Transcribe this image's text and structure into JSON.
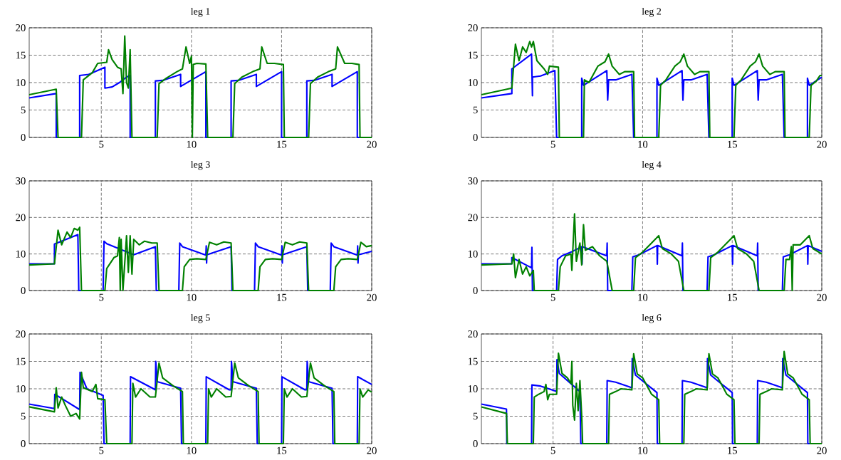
{
  "chart_data": [
    {
      "type": "line",
      "title": "leg 1",
      "xlim": [
        1,
        20
      ],
      "xticks": [
        5,
        10,
        15,
        20
      ],
      "ylim": [
        0,
        20
      ],
      "yticks": [
        0,
        5,
        10,
        15,
        20
      ],
      "grid": true,
      "series": [
        {
          "color": "#0000ff",
          "x": [
            1,
            2.5,
            2.5,
            3.8,
            3.8,
            4.3,
            5.2,
            5.2,
            5.6,
            6,
            6.4,
            6.6,
            6.6,
            8,
            8,
            8.4,
            9.4,
            9.4,
            10.8,
            10.8,
            12.2,
            12.2,
            12.6,
            13.6,
            13.6,
            15,
            15,
            16.4,
            16.4,
            16.8,
            17.8,
            17.8,
            19.2,
            19.2,
            20
          ],
          "values": [
            7.2,
            8,
            0,
            0,
            11.3,
            11.5,
            12.8,
            9,
            9.2,
            10,
            11,
            11.3,
            0,
            0,
            10.3,
            10.4,
            11.5,
            9.3,
            12,
            0,
            0,
            10.3,
            10.4,
            11.5,
            9.3,
            12,
            0,
            0,
            10.3,
            10.4,
            11.5,
            9.3,
            12,
            0,
            0
          ]
        },
        {
          "color": "#008000",
          "x": [
            1,
            2.5,
            2.6,
            3.9,
            4,
            4.5,
            4.8,
            5.3,
            5.4,
            5.6,
            5.9,
            6.1,
            6.2,
            6.3,
            6.4,
            6.5,
            6.6,
            6.7,
            8.1,
            8.2,
            8.6,
            9.2,
            9.5,
            9.7,
            9.9,
            10,
            10.05,
            10.1,
            10.3,
            10.8,
            10.9,
            12.3,
            12.4,
            12.8,
            13.4,
            13.8,
            13.9,
            14.2,
            14.6,
            15.1,
            15.15,
            16.5,
            16.6,
            17,
            17.6,
            18,
            18.1,
            18.5,
            18.9,
            19.3,
            19.35,
            20
          ],
          "values": [
            7.8,
            8.8,
            0,
            0,
            10.5,
            11.8,
            13.5,
            13.7,
            16,
            14.2,
            12.8,
            12.5,
            8,
            18.5,
            10,
            9,
            16,
            0,
            0,
            9.8,
            10.8,
            12,
            12.5,
            16.5,
            13.5,
            14.8,
            0,
            13.3,
            13.5,
            13.4,
            0,
            0,
            9.8,
            11,
            12,
            12.5,
            16.5,
            13.5,
            13.5,
            13.3,
            0,
            0,
            9.8,
            11,
            12,
            12.5,
            16.5,
            13.5,
            13.5,
            13.3,
            0,
            0
          ]
        }
      ]
    },
    {
      "type": "line",
      "title": "leg 2",
      "xlim": [
        1,
        20
      ],
      "xticks": [
        5,
        10,
        15,
        20
      ],
      "ylim": [
        0,
        20
      ],
      "yticks": [
        0,
        5,
        10,
        15,
        20
      ],
      "grid": true,
      "series": [
        {
          "color": "#0000ff",
          "x": [
            1,
            2.7,
            2.7,
            3.8,
            3.85,
            3.85,
            4.3,
            5.1,
            5.2,
            6.6,
            6.6,
            6.7,
            8,
            8.05,
            8.1,
            8.5,
            9.4,
            9.5,
            10.8,
            10.8,
            10.9,
            12.2,
            12.25,
            12.3,
            12.7,
            13.6,
            13.7,
            15,
            15,
            15.1,
            16.4,
            16.45,
            16.5,
            16.9,
            17.8,
            17.9,
            19.2,
            19.2,
            19.3,
            20
          ],
          "values": [
            7.2,
            8,
            12.5,
            15.2,
            7.6,
            11,
            11.2,
            12.2,
            0,
            0,
            10.8,
            9.5,
            12.2,
            6.8,
            10.5,
            10.5,
            11.5,
            0,
            0,
            10.8,
            9.5,
            12.2,
            6.8,
            10.5,
            10.5,
            11.5,
            0,
            0,
            10.8,
            9.5,
            12.2,
            6.8,
            10.5,
            10.5,
            11.5,
            0,
            0,
            10.8,
            9.5,
            11
          ]
        },
        {
          "color": "#008000",
          "x": [
            1,
            2.7,
            2.9,
            3.1,
            3.3,
            3.5,
            3.7,
            3.8,
            3.9,
            4.1,
            4.5,
            4.7,
            4.8,
            5.3,
            5.35,
            6.7,
            6.75,
            7,
            7.5,
            7.9,
            8.1,
            8.3,
            8.7,
            9,
            9.5,
            9.55,
            10.9,
            11,
            11.3,
            11.8,
            12.1,
            12.3,
            12.5,
            12.9,
            13.2,
            13.7,
            13.75,
            15.1,
            15.2,
            15.5,
            16,
            16.3,
            16.5,
            16.7,
            17.1,
            17.4,
            17.9,
            17.95,
            19.3,
            19.4,
            19.7,
            19.9,
            20
          ],
          "values": [
            7.8,
            9,
            17,
            14,
            16.5,
            15.5,
            17.5,
            16.5,
            17.5,
            14,
            12.5,
            11.5,
            13,
            12.8,
            0,
            0,
            10.5,
            10,
            13,
            13.8,
            15.2,
            13,
            11.5,
            12,
            12,
            0,
            0,
            9.5,
            10.5,
            13,
            13.8,
            15.2,
            13,
            11.5,
            12,
            12,
            0,
            0,
            9.5,
            10.5,
            13,
            13.8,
            15.2,
            13,
            11.5,
            12,
            12,
            0,
            0,
            9.5,
            10.3,
            11.3,
            11.3
          ]
        }
      ]
    },
    {
      "type": "line",
      "title": "leg 3",
      "xlim": [
        1,
        20
      ],
      "xticks": [
        5,
        10,
        15,
        20
      ],
      "ylim": [
        0,
        30
      ],
      "yticks": [
        0,
        10,
        20,
        30
      ],
      "grid": true,
      "series": [
        {
          "color": "#0000ff",
          "x": [
            1,
            2.4,
            2.4,
            3.7,
            3.75,
            5.1,
            5.15,
            5.3,
            6.8,
            8,
            8.05,
            9.3,
            9.35,
            9.5,
            10.8,
            10.82,
            10.84,
            10.86,
            12.2,
            12.25,
            13.5,
            13.55,
            13.7,
            15,
            15.02,
            15.04,
            15.06,
            16.4,
            16.45,
            17.7,
            17.75,
            17.9,
            19.2,
            19.22,
            19.24,
            19.26,
            20
          ],
          "values": [
            7.3,
            7.3,
            12.7,
            15.3,
            0,
            0,
            13.5,
            12.8,
            9.8,
            12,
            0,
            0,
            13,
            12,
            9.7,
            12.2,
            7.5,
            9.8,
            12,
            0,
            0,
            13,
            12,
            9.7,
            12.2,
            7.5,
            9.8,
            12,
            0,
            0,
            13,
            12,
            9.7,
            12.2,
            7.5,
            9.8,
            10.7
          ]
        },
        {
          "color": "#008000",
          "x": [
            1,
            2.4,
            2.6,
            2.8,
            3.1,
            3.3,
            3.5,
            3.7,
            3.8,
            3.9,
            5.2,
            5.3,
            5.7,
            5.9,
            6,
            6.05,
            6.1,
            6.2,
            6.4,
            6.5,
            6.6,
            6.7,
            6.8,
            7.1,
            7.4,
            7.8,
            8.1,
            8.2,
            9.5,
            9.6,
            9.9,
            10.3,
            10.8,
            11,
            11.4,
            11.8,
            12.2,
            12.3,
            13.7,
            13.8,
            14.1,
            14.5,
            15,
            15.2,
            15.6,
            16,
            16.4,
            16.5,
            17.9,
            18,
            18.3,
            18.7,
            19.2,
            19.4,
            19.7,
            20
          ],
          "values": [
            7,
            7.3,
            16.5,
            12.5,
            16,
            14.5,
            17,
            16.5,
            17.3,
            0,
            0,
            6,
            9,
            9.5,
            14.5,
            0,
            14,
            0,
            15,
            5,
            15,
            4.5,
            14,
            12.5,
            13.5,
            13,
            13,
            0,
            0,
            6.5,
            8.5,
            8.7,
            8.5,
            13.2,
            12.5,
            13.3,
            13,
            0,
            0,
            6.5,
            8.5,
            8.7,
            8.5,
            13.2,
            12.5,
            13.3,
            13,
            0,
            0,
            6.5,
            8.5,
            8.7,
            8.5,
            13.2,
            12,
            12.3
          ]
        }
      ]
    },
    {
      "type": "line",
      "title": "leg 4",
      "xlim": [
        1,
        20
      ],
      "xticks": [
        5,
        10,
        15,
        20
      ],
      "ylim": [
        0,
        30
      ],
      "yticks": [
        0,
        10,
        20,
        30
      ],
      "grid": true,
      "series": [
        {
          "color": "#0000ff",
          "x": [
            1,
            2.7,
            2.7,
            3.8,
            3.82,
            3.85,
            5.2,
            5.25,
            5.5,
            6,
            6.6,
            6.62,
            6.64,
            8,
            8.02,
            8.05,
            9.4,
            9.45,
            9.8,
            10.8,
            10.82,
            10.84,
            12.2,
            12.22,
            12.25,
            13.6,
            13.65,
            14,
            15,
            15.02,
            15.04,
            16.4,
            16.42,
            16.45,
            17.8,
            17.85,
            18.2,
            19.2,
            19.22,
            19.24,
            20
          ],
          "values": [
            7.3,
            7.3,
            9,
            6.2,
            11.8,
            0,
            0,
            8.5,
            9.5,
            10.5,
            12,
            7.2,
            12,
            9.5,
            13,
            0,
            0,
            9.2,
            9.8,
            12.3,
            7.2,
            12.3,
            9.5,
            13,
            0,
            0,
            9.2,
            9.8,
            12.3,
            7.2,
            12.3,
            9.5,
            13,
            0,
            0,
            9.2,
            9.8,
            12.3,
            7.2,
            12.3,
            10.7
          ]
        },
        {
          "color": "#008000",
          "x": [
            1,
            2.7,
            2.8,
            2.9,
            3.1,
            3.3,
            3.5,
            3.7,
            3.9,
            3.95,
            5.3,
            5.4,
            5.7,
            6,
            6.05,
            6.2,
            6.3,
            6.5,
            6.6,
            6.7,
            6.8,
            7.2,
            7.6,
            8,
            8.3,
            9.5,
            9.6,
            10,
            10.5,
            10.9,
            11.1,
            11.6,
            12,
            12.3,
            13.7,
            13.8,
            14.2,
            14.7,
            15.1,
            15.3,
            15.8,
            16.2,
            16.5,
            17.9,
            18,
            18.2,
            18.3,
            18.35,
            18.4,
            18.8,
            19.3,
            19.5,
            20
          ],
          "values": [
            7,
            7.3,
            10,
            3.5,
            8.5,
            4.5,
            6.5,
            4,
            5.5,
            0,
            0,
            6.5,
            9.5,
            10,
            5.5,
            21,
            8,
            13,
            7,
            18,
            11,
            12,
            9.5,
            8,
            0,
            0,
            9,
            10.5,
            13,
            15,
            11.5,
            10,
            8,
            0,
            0,
            9,
            10.5,
            13,
            15,
            11.5,
            10,
            8,
            0,
            0,
            8.5,
            8.5,
            12,
            0,
            12.5,
            12.5,
            15,
            11.5,
            10
          ]
        }
      ]
    },
    {
      "type": "line",
      "title": "leg 5",
      "xlim": [
        1,
        20
      ],
      "xticks": [
        5,
        10,
        15,
        20
      ],
      "ylim": [
        0,
        20
      ],
      "yticks": [
        0,
        5,
        10,
        15,
        20
      ],
      "grid": true,
      "series": [
        {
          "color": "#0000ff",
          "x": [
            1,
            2.4,
            2.42,
            3.8,
            3.82,
            4.2,
            5.1,
            5.15,
            6.6,
            6.62,
            7.9,
            8,
            8.02,
            8.1,
            9.4,
            9.45,
            10.8,
            10.82,
            12.1,
            12.2,
            12.22,
            12.3,
            13.6,
            13.65,
            15,
            15.02,
            16.3,
            16.4,
            16.42,
            16.5,
            17.8,
            17.85,
            19.2,
            19.22,
            20
          ],
          "values": [
            7.2,
            6.4,
            9,
            6.2,
            13,
            10,
            8.8,
            0,
            0,
            12.2,
            10,
            9.8,
            15,
            11.3,
            10.1,
            0,
            0,
            12.2,
            9.8,
            9.8,
            15,
            11.3,
            10.1,
            0,
            0,
            12.2,
            9.8,
            9.8,
            15,
            11.3,
            10.1,
            0,
            0,
            12.2,
            10.8
          ]
        },
        {
          "color": "#008000",
          "x": [
            1,
            2.4,
            2.5,
            2.6,
            2.8,
            3,
            3.3,
            3.6,
            3.8,
            3.9,
            4,
            4.5,
            4.7,
            4.8,
            5.2,
            5.3,
            6.7,
            6.75,
            6.9,
            7.2,
            7.7,
            8,
            8.2,
            8.4,
            9,
            9.5,
            9.55,
            10.9,
            10.95,
            11.1,
            11.4,
            11.9,
            12.2,
            12.4,
            12.6,
            13.2,
            13.7,
            13.75,
            15.1,
            15.15,
            15.3,
            15.6,
            16.1,
            16.4,
            16.6,
            16.8,
            17.4,
            17.9,
            17.95,
            19.3,
            19.35,
            19.5,
            19.8,
            20
          ],
          "values": [
            6.7,
            5.8,
            10.2,
            6.5,
            8.5,
            7,
            5,
            5.5,
            4.5,
            13,
            10.2,
            9.5,
            10.8,
            8.2,
            8,
            0,
            0,
            11,
            8.5,
            10,
            8.5,
            8.5,
            14.7,
            12,
            10.5,
            9.5,
            0,
            0,
            10,
            8.5,
            10,
            8.5,
            8.6,
            14.7,
            12,
            10.5,
            9.5,
            0,
            0,
            10,
            8.5,
            10,
            8.5,
            8.6,
            14.7,
            12,
            10.5,
            9.5,
            0,
            0,
            10,
            8.5,
            9.8,
            9.4
          ]
        }
      ]
    },
    {
      "type": "line",
      "title": "leg 6",
      "xlim": [
        1,
        20
      ],
      "xticks": [
        5,
        10,
        15,
        20
      ],
      "ylim": [
        0,
        20
      ],
      "yticks": [
        0,
        5,
        10,
        15,
        20
      ],
      "grid": true,
      "series": [
        {
          "color": "#0000ff",
          "x": [
            1,
            2.4,
            2.42,
            3.8,
            3.82,
            4.3,
            5.2,
            5.22,
            5.35,
            6.5,
            6.55,
            8,
            8.02,
            8.5,
            9.4,
            9.42,
            9.6,
            10.8,
            10.82,
            12.2,
            12.22,
            12.7,
            13.6,
            13.62,
            13.8,
            15,
            15.02,
            16.4,
            16.42,
            16.9,
            17.8,
            17.82,
            18,
            19.2,
            19.22,
            20
          ],
          "values": [
            7.2,
            6.3,
            0,
            0,
            10.7,
            10.5,
            9.5,
            15.3,
            12.8,
            9.5,
            0,
            0,
            11.5,
            11.2,
            10.2,
            15.5,
            12.5,
            9.3,
            0,
            0,
            11.5,
            11.2,
            10.2,
            15.5,
            12.5,
            9.3,
            0,
            0,
            11.5,
            11.2,
            10.2,
            15.5,
            12.5,
            9.3,
            0,
            0
          ]
        },
        {
          "color": "#008000",
          "x": [
            1,
            2.4,
            2.45,
            3.9,
            3.95,
            4.2,
            4.5,
            4.6,
            4.7,
            4.8,
            5.2,
            5.3,
            5.5,
            5.8,
            6,
            6.05,
            6.1,
            6.2,
            6.3,
            6.4,
            6.5,
            6.6,
            6.65,
            8.1,
            8.15,
            8.5,
            8.8,
            9.4,
            9.5,
            9.7,
            10,
            10.5,
            10.9,
            10.95,
            12.3,
            12.35,
            12.7,
            13,
            13.6,
            13.7,
            13.9,
            14.2,
            14.7,
            15.1,
            15.15,
            16.5,
            16.55,
            16.9,
            17.2,
            17.8,
            17.9,
            18.1,
            18.4,
            18.9,
            19.3,
            19.35,
            20
          ],
          "values": [
            6.7,
            5.5,
            0,
            0,
            8.5,
            9,
            9.5,
            10.8,
            8,
            9,
            9,
            16.5,
            12.8,
            12,
            11,
            15,
            7,
            4.3,
            11,
            6,
            11.5,
            5,
            0,
            0,
            9,
            9.5,
            10,
            9.8,
            16.4,
            12.7,
            12,
            9,
            8,
            0,
            0,
            9,
            9.5,
            10,
            9.8,
            16.4,
            12.7,
            12,
            9,
            8,
            0,
            0,
            9,
            9.5,
            10,
            9.8,
            16.8,
            12.7,
            12,
            9,
            8,
            0,
            0
          ]
        }
      ]
    }
  ]
}
